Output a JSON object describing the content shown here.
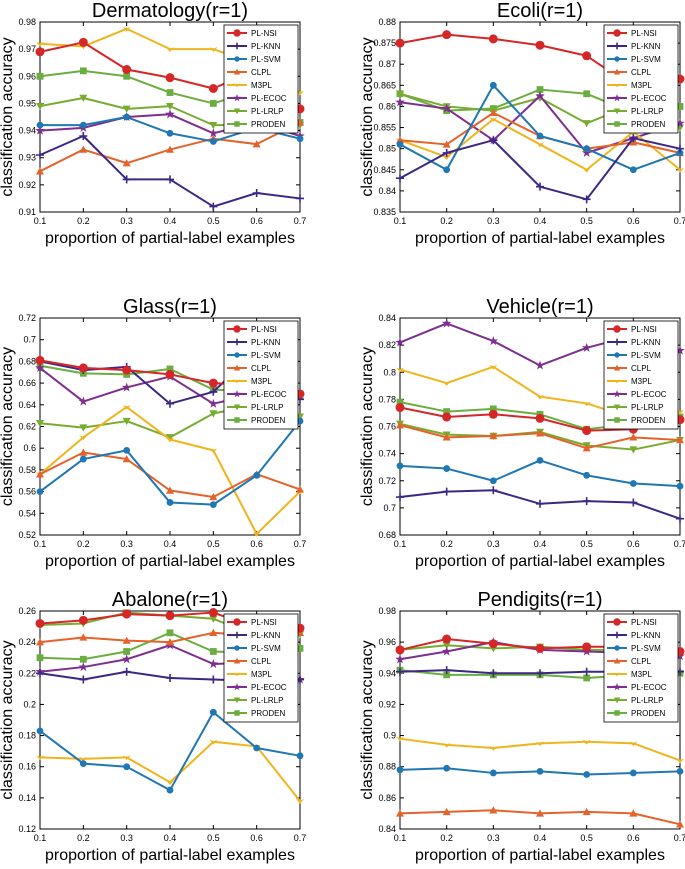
{
  "figure": {
    "series_names": [
      "PL-NSI",
      "PL-KNN",
      "PL-SVM",
      "CLPL",
      "M3PL",
      "PL-ECOC",
      "PL-LRLP",
      "PRODEN"
    ],
    "series_colors": [
      "#d62728",
      "#3d2785",
      "#1f77b4",
      "#e4622b",
      "#f0b51c",
      "#7e2f8e",
      "#77ac30",
      "#6aae3f"
    ],
    "series_markers": [
      "circle",
      "plus",
      "dot",
      "triangle",
      "chevron",
      "star",
      "tri-down",
      "square"
    ]
  },
  "chart_data": [
    {
      "type": "line",
      "title": "Dermatology(r=1)",
      "xlabel": "proportion of partial-label examples",
      "ylabel": "classification accuracy",
      "x": [
        0.1,
        0.2,
        0.3,
        0.4,
        0.5,
        0.6,
        0.7
      ],
      "xticks": [
        "0.1",
        "0.2",
        "0.3",
        "0.4",
        "0.5",
        "0.6",
        "0.7"
      ],
      "ylim": [
        0.91,
        0.98
      ],
      "yticks": [
        "0.91",
        "0.92",
        "0.93",
        "0.94",
        "0.95",
        "0.96",
        "0.97",
        "0.98"
      ],
      "series": [
        {
          "name": "PL-NSI",
          "values": [
            0.969,
            0.9725,
            0.9625,
            0.9595,
            0.9555,
            0.9625,
            0.948
          ]
        },
        {
          "name": "PL-KNN",
          "values": [
            0.931,
            0.938,
            0.922,
            0.922,
            0.912,
            0.917,
            0.915
          ]
        },
        {
          "name": "PL-SVM",
          "values": [
            0.942,
            0.942,
            0.945,
            0.939,
            0.936,
            0.941,
            0.937
          ]
        },
        {
          "name": "CLPL",
          "values": [
            0.925,
            0.933,
            0.928,
            0.933,
            0.937,
            0.935,
            0.943
          ]
        },
        {
          "name": "M3PL",
          "values": [
            0.972,
            0.971,
            0.9775,
            0.97,
            0.97,
            0.9645,
            0.954
          ]
        },
        {
          "name": "PL-ECOC",
          "values": [
            0.94,
            0.941,
            0.945,
            0.946,
            0.939,
            0.943,
            0.938
          ]
        },
        {
          "name": "PL-LRLP",
          "values": [
            0.949,
            0.952,
            0.948,
            0.949,
            0.942,
            0.942,
            0.942
          ]
        },
        {
          "name": "PRODEN",
          "values": [
            0.96,
            0.962,
            0.96,
            0.954,
            0.95,
            0.955,
            0.943
          ]
        }
      ]
    },
    {
      "type": "line",
      "title": "Ecoli(r=1)",
      "xlabel": "proportion of partial-label examples",
      "ylabel": "classification accuracy",
      "x": [
        0.1,
        0.2,
        0.3,
        0.4,
        0.5,
        0.6,
        0.7
      ],
      "xticks": [
        "0.1",
        "0.2",
        "0.3",
        "0.4",
        "0.5",
        "0.6",
        "0.7"
      ],
      "ylim": [
        0.835,
        0.88
      ],
      "yticks": [
        "0.835",
        "0.84",
        "0.845",
        "0.85",
        "0.855",
        "0.86",
        "0.865",
        "0.87",
        "0.875",
        "0.88"
      ],
      "series": [
        {
          "name": "PL-NSI",
          "values": [
            0.875,
            0.877,
            0.876,
            0.8745,
            0.872,
            0.8645,
            0.8665
          ]
        },
        {
          "name": "PL-KNN",
          "values": [
            0.843,
            0.849,
            0.852,
            0.841,
            0.838,
            0.8525,
            0.85
          ]
        },
        {
          "name": "PL-SVM",
          "values": [
            0.851,
            0.845,
            0.865,
            0.853,
            0.85,
            0.845,
            0.849
          ]
        },
        {
          "name": "CLPL",
          "values": [
            0.852,
            0.851,
            0.8585,
            0.853,
            0.85,
            0.8515,
            0.849
          ]
        },
        {
          "name": "M3PL",
          "values": [
            0.852,
            0.848,
            0.857,
            0.851,
            0.845,
            0.854,
            0.845
          ]
        },
        {
          "name": "PL-ECOC",
          "values": [
            0.861,
            0.8595,
            0.852,
            0.8625,
            0.849,
            0.8525,
            0.856
          ]
        },
        {
          "name": "PL-LRLP",
          "values": [
            0.863,
            0.86,
            0.859,
            0.862,
            0.856,
            0.8605,
            0.855
          ]
        },
        {
          "name": "PRODEN",
          "values": [
            0.863,
            0.859,
            0.8595,
            0.864,
            0.863,
            0.8585,
            0.86
          ]
        }
      ]
    },
    {
      "type": "line",
      "title": "Glass(r=1)",
      "xlabel": "proportion of partial-label examples",
      "ylabel": "classification accuracy",
      "x": [
        0.1,
        0.2,
        0.3,
        0.4,
        0.5,
        0.6,
        0.7
      ],
      "xticks": [
        "0.1",
        "0.2",
        "0.3",
        "0.4",
        "0.5",
        "0.6",
        "0.7"
      ],
      "ylim": [
        0.52,
        0.72
      ],
      "yticks": [
        "0.52",
        "0.54",
        "0.56",
        "0.58",
        "0.6",
        "0.62",
        "0.64",
        "0.66",
        "0.68",
        "0.7",
        "0.72"
      ],
      "series": [
        {
          "name": "PL-NSI",
          "values": [
            0.681,
            0.674,
            0.672,
            0.668,
            0.66,
            0.658,
            0.65
          ]
        },
        {
          "name": "PL-KNN",
          "values": [
            0.68,
            0.672,
            0.675,
            0.641,
            0.652,
            0.69,
            0.645
          ]
        },
        {
          "name": "PL-SVM",
          "values": [
            0.56,
            0.59,
            0.598,
            0.55,
            0.548,
            0.575,
            0.625
          ]
        },
        {
          "name": "CLPL",
          "values": [
            0.576,
            0.596,
            0.59,
            0.561,
            0.555,
            0.576,
            0.562
          ]
        },
        {
          "name": "M3PL",
          "values": [
            0.576,
            0.61,
            0.638,
            0.608,
            0.598,
            0.521,
            0.56
          ]
        },
        {
          "name": "PL-ECOC",
          "values": [
            0.674,
            0.643,
            0.656,
            0.666,
            0.641,
            0.65,
            0.648
          ]
        },
        {
          "name": "PL-LRLP",
          "values": [
            0.623,
            0.619,
            0.625,
            0.61,
            0.632,
            0.64,
            0.629
          ]
        },
        {
          "name": "PRODEN",
          "values": [
            0.676,
            0.669,
            0.668,
            0.673,
            0.654,
            0.652,
            0.648
          ]
        }
      ]
    },
    {
      "type": "line",
      "title": "Vehicle(r=1)",
      "xlabel": "proportion of partial-label examples",
      "ylabel": "classification accuracy",
      "x": [
        0.1,
        0.2,
        0.3,
        0.4,
        0.5,
        0.6,
        0.7
      ],
      "xticks": [
        "0.1",
        "0.2",
        "0.3",
        "0.4",
        "0.5",
        "0.6",
        "0.7"
      ],
      "ylim": [
        0.68,
        0.84
      ],
      "yticks": [
        "0.68",
        "0.7",
        "0.72",
        "0.74",
        "0.76",
        "0.78",
        "0.8",
        "0.82",
        "0.84"
      ],
      "series": [
        {
          "name": "PL-NSI",
          "values": [
            0.774,
            0.767,
            0.769,
            0.766,
            0.757,
            0.758,
            0.765
          ]
        },
        {
          "name": "PL-KNN",
          "values": [
            0.708,
            0.712,
            0.713,
            0.703,
            0.705,
            0.704,
            0.692
          ]
        },
        {
          "name": "PL-SVM",
          "values": [
            0.731,
            0.729,
            0.72,
            0.735,
            0.724,
            0.718,
            0.716
          ]
        },
        {
          "name": "CLPL",
          "values": [
            0.761,
            0.752,
            0.753,
            0.755,
            0.744,
            0.752,
            0.75
          ]
        },
        {
          "name": "M3PL",
          "values": [
            0.802,
            0.792,
            0.804,
            0.782,
            0.777,
            0.766,
            0.771
          ]
        },
        {
          "name": "PL-ECOC",
          "values": [
            0.822,
            0.836,
            0.823,
            0.805,
            0.818,
            0.827,
            0.816
          ]
        },
        {
          "name": "PL-LRLP",
          "values": [
            0.762,
            0.754,
            0.753,
            0.756,
            0.746,
            0.743,
            0.75
          ]
        },
        {
          "name": "PRODEN",
          "values": [
            0.778,
            0.771,
            0.773,
            0.769,
            0.758,
            0.762,
            0.767
          ]
        }
      ]
    },
    {
      "type": "line",
      "title": "Abalone(r=1)",
      "xlabel": "proportion of partial-label examples",
      "ylabel": "classification accuracy",
      "x": [
        0.1,
        0.2,
        0.3,
        0.4,
        0.5,
        0.6,
        0.7
      ],
      "xticks": [
        "0.1",
        "0.2",
        "0.3",
        "0.4",
        "0.5",
        "0.6",
        "0.7"
      ],
      "ylim": [
        0.12,
        0.26
      ],
      "yticks": [
        "0.12",
        "0.14",
        "0.16",
        "0.18",
        "0.2",
        "0.22",
        "0.24",
        "0.26"
      ],
      "series": [
        {
          "name": "PL-NSI",
          "values": [
            0.252,
            0.254,
            0.258,
            0.257,
            0.259,
            0.249,
            0.249
          ]
        },
        {
          "name": "PL-KNN",
          "values": [
            0.22,
            0.216,
            0.221,
            0.217,
            0.216,
            0.215,
            0.216
          ]
        },
        {
          "name": "PL-SVM",
          "values": [
            0.183,
            0.162,
            0.16,
            0.145,
            0.195,
            0.172,
            0.167
          ]
        },
        {
          "name": "CLPL",
          "values": [
            0.24,
            0.243,
            0.241,
            0.24,
            0.246,
            0.244,
            0.246
          ]
        },
        {
          "name": "M3PL",
          "values": [
            0.166,
            0.165,
            0.166,
            0.15,
            0.176,
            0.173,
            0.138
          ]
        },
        {
          "name": "PL-ECOC",
          "values": [
            0.221,
            0.224,
            0.229,
            0.238,
            0.226,
            0.227,
            0.216
          ]
        },
        {
          "name": "PL-LRLP",
          "values": [
            0.251,
            0.252,
            0.259,
            0.257,
            0.255,
            0.244,
            0.245
          ]
        },
        {
          "name": "PRODEN",
          "values": [
            0.23,
            0.229,
            0.234,
            0.246,
            0.234,
            0.233,
            0.236
          ]
        }
      ]
    },
    {
      "type": "line",
      "title": "Pendigits(r=1)",
      "xlabel": "proportion of partial-label examples",
      "ylabel": "classification accuracy",
      "x": [
        0.1,
        0.2,
        0.3,
        0.4,
        0.5,
        0.6,
        0.7
      ],
      "xticks": [
        "0.1",
        "0.2",
        "0.3",
        "0.4",
        "0.5",
        "0.6",
        "0.7"
      ],
      "ylim": [
        0.84,
        0.98
      ],
      "yticks": [
        "0.84",
        "0.86",
        "0.88",
        "0.9",
        "0.92",
        "0.94",
        "0.96",
        "0.98"
      ],
      "series": [
        {
          "name": "PL-NSI",
          "values": [
            0.955,
            0.962,
            0.959,
            0.956,
            0.957,
            0.957,
            0.954
          ]
        },
        {
          "name": "PL-KNN",
          "values": [
            0.941,
            0.942,
            0.94,
            0.94,
            0.941,
            0.941,
            0.941
          ]
        },
        {
          "name": "PL-SVM",
          "values": [
            0.878,
            0.879,
            0.876,
            0.877,
            0.875,
            0.876,
            0.877
          ]
        },
        {
          "name": "CLPL",
          "values": [
            0.85,
            0.851,
            0.852,
            0.85,
            0.851,
            0.85,
            0.843
          ]
        },
        {
          "name": "M3PL",
          "values": [
            0.898,
            0.894,
            0.892,
            0.895,
            0.896,
            0.895,
            0.884
          ]
        },
        {
          "name": "PL-ECOC",
          "values": [
            0.949,
            0.954,
            0.96,
            0.955,
            0.954,
            0.953,
            0.951
          ]
        },
        {
          "name": "PL-LRLP",
          "values": [
            0.955,
            0.958,
            0.956,
            0.957,
            0.955,
            0.955,
            0.952
          ]
        },
        {
          "name": "PRODEN",
          "values": [
            0.942,
            0.939,
            0.939,
            0.939,
            0.937,
            0.939,
            0.94
          ]
        }
      ]
    }
  ]
}
